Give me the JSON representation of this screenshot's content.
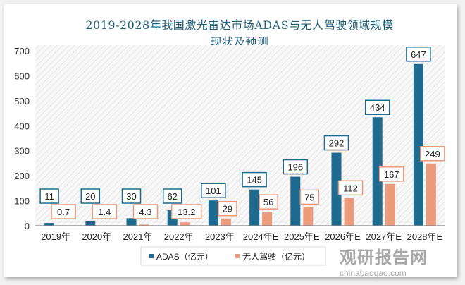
{
  "chart_data": {
    "type": "bar",
    "title": "2019-2028年我国激光雷达市场ADAS与无人驾驶领域规模现状及预测",
    "title_lines": [
      "2019-2028年我国激光雷达市场ADAS与无人驾驶领域规模",
      "现状及预测"
    ],
    "categories": [
      "2019年",
      "2020年",
      "2021年",
      "2022年",
      "2023年",
      "2024年E",
      "2025年E",
      "2026年E",
      "2027年E",
      "2028年E"
    ],
    "series": [
      {
        "name": "ADAS（亿元）",
        "color": "#1f6b8f",
        "values": [
          11,
          20,
          30,
          62,
          101,
          145,
          196,
          292,
          434,
          647
        ]
      },
      {
        "name": "无人驾驶（亿元）",
        "color": "#eb9a7c",
        "values": [
          0.7,
          1.4,
          4.3,
          13.2,
          29,
          56,
          75,
          112,
          167,
          249
        ]
      }
    ],
    "ylim": [
      0,
      700
    ],
    "yticks": [
      0,
      100,
      200,
      300,
      400,
      500,
      600,
      700
    ],
    "xlabel": "",
    "ylabel": "",
    "grid": false,
    "legend": "bottom"
  },
  "watermark": {
    "cn": "观研报告网",
    "en": "chinabaogao.com"
  }
}
